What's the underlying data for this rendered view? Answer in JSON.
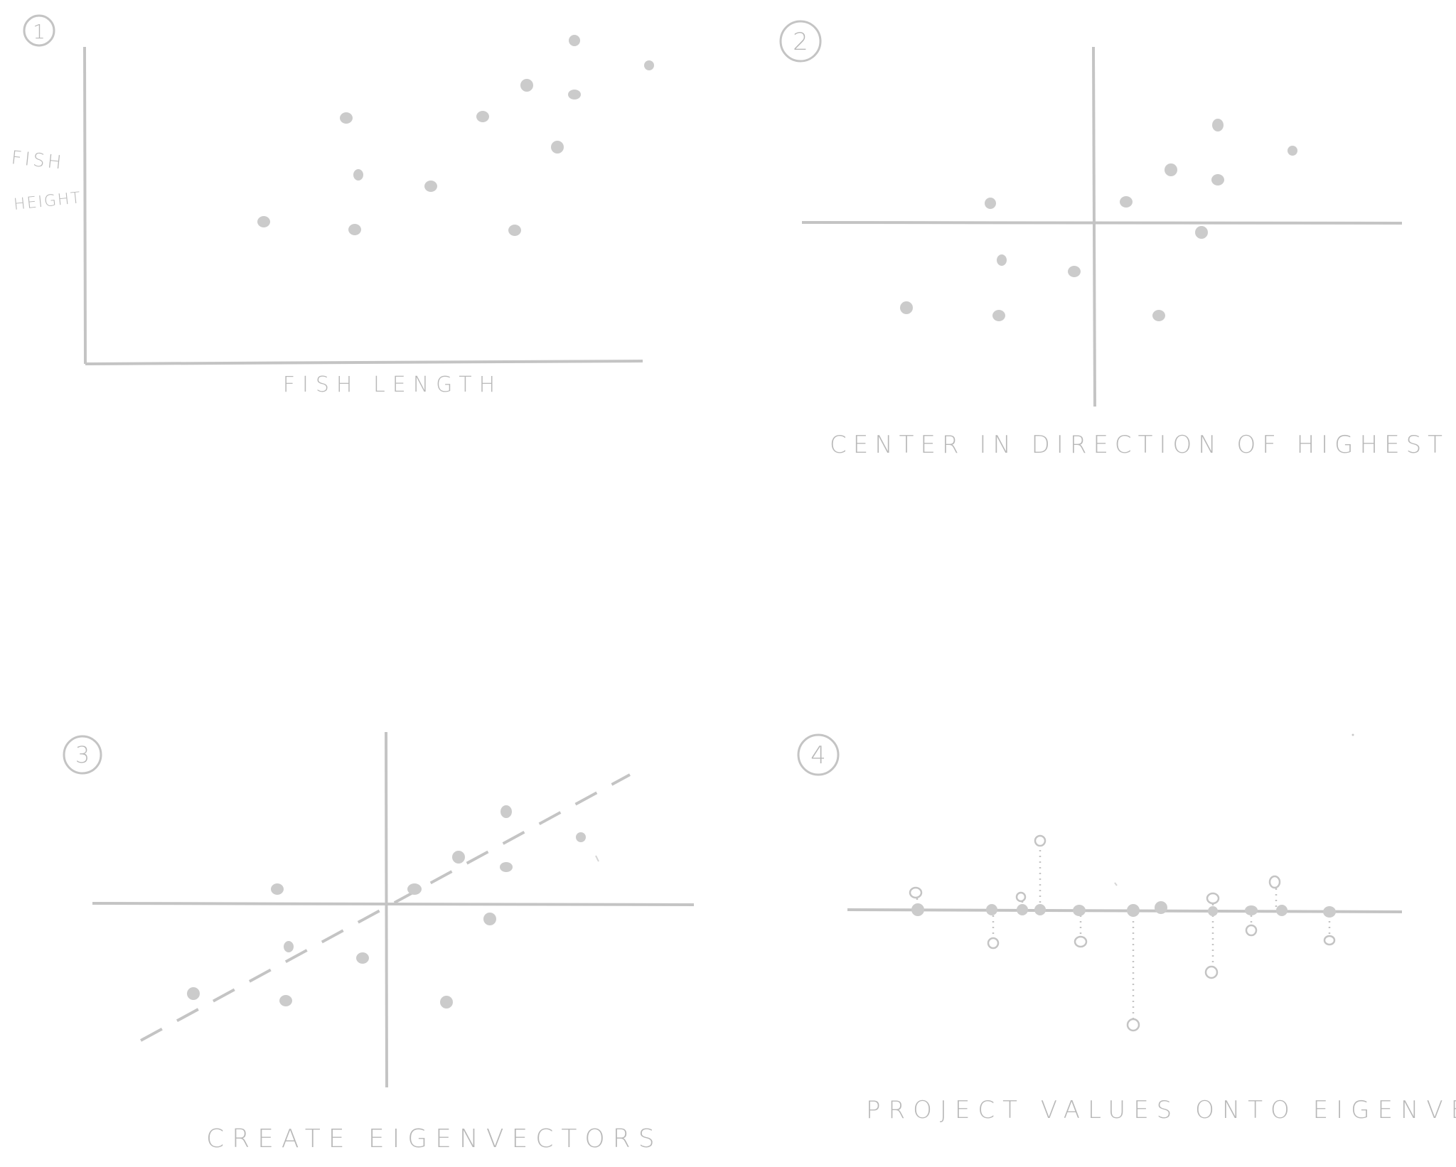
{
  "colors": {
    "ink": "#c4c4c4",
    "dot": "#cbcbcb",
    "text": "#b8b8b8"
  },
  "panels": [
    {
      "number": "1",
      "caption": "",
      "x_label": "FISH LENGTH",
      "y_label_line1": "FISH",
      "y_label_line2": "HEIGHT"
    },
    {
      "number": "2",
      "caption": "CENTER IN DIRECTION OF HIGHEST VAR."
    },
    {
      "number": "3",
      "caption": "CREATE EIGENVECTORS"
    },
    {
      "number": "4",
      "caption": "PROJECT VALUES ONTO EIGENVECTORS"
    }
  ]
}
